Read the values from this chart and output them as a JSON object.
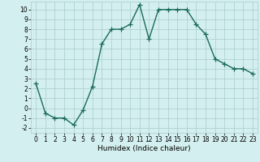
{
  "title": "",
  "xlabel": "Humidex (Indice chaleur)",
  "ylabel": "",
  "x": [
    0,
    1,
    2,
    3,
    4,
    5,
    6,
    7,
    8,
    9,
    10,
    11,
    12,
    13,
    14,
    15,
    16,
    17,
    18,
    19,
    20,
    21,
    22,
    23
  ],
  "y": [
    2.5,
    -0.5,
    -1.0,
    -1.0,
    -1.7,
    -0.2,
    2.2,
    6.5,
    8.0,
    8.0,
    8.5,
    10.5,
    7.0,
    10.0,
    10.0,
    10.0,
    10.0,
    8.5,
    7.5,
    5.0,
    4.5,
    4.0,
    4.0,
    3.5
  ],
  "line_color": "#1a6b5a",
  "marker": "+",
  "marker_size": 4,
  "linewidth": 1.0,
  "xlim": [
    -0.5,
    23.5
  ],
  "ylim": [
    -2.5,
    10.8
  ],
  "yticks": [
    -2,
    -1,
    0,
    1,
    2,
    3,
    4,
    5,
    6,
    7,
    8,
    9,
    10
  ],
  "xticks": [
    0,
    1,
    2,
    3,
    4,
    5,
    6,
    7,
    8,
    9,
    10,
    11,
    12,
    13,
    14,
    15,
    16,
    17,
    18,
    19,
    20,
    21,
    22,
    23
  ],
  "xtick_labels": [
    "0",
    "1",
    "2",
    "3",
    "4",
    "5",
    "6",
    "7",
    "8",
    "9",
    "10",
    "11",
    "12",
    "13",
    "14",
    "15",
    "16",
    "17",
    "18",
    "19",
    "20",
    "21",
    "22",
    "23"
  ],
  "background_color": "#d4efef",
  "grid_color": "#a8cccc",
  "label_fontsize": 6.5,
  "tick_fontsize": 5.5
}
